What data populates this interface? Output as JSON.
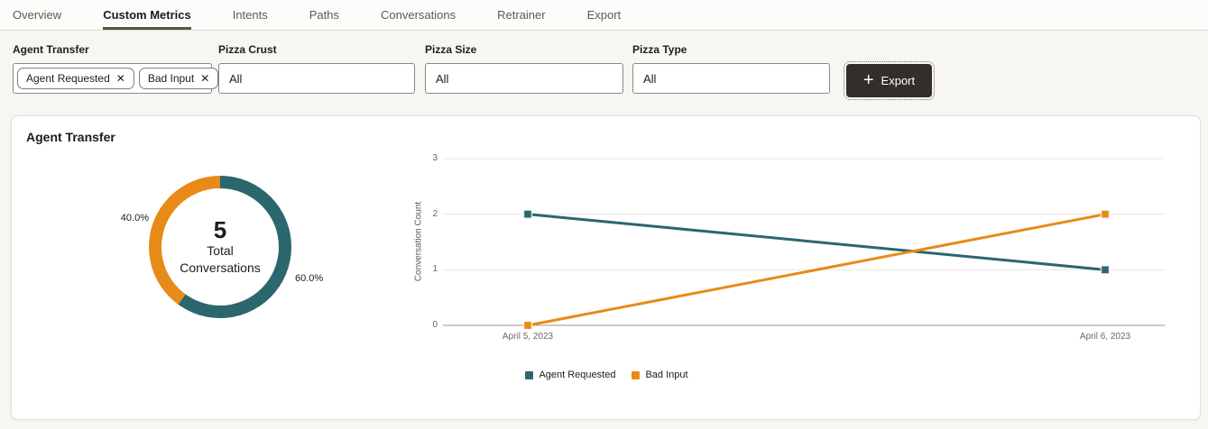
{
  "tabs": {
    "items": [
      {
        "label": "Overview",
        "active": false
      },
      {
        "label": "Custom Metrics",
        "active": true
      },
      {
        "label": "Intents",
        "active": false
      },
      {
        "label": "Paths",
        "active": false
      },
      {
        "label": "Conversations",
        "active": false
      },
      {
        "label": "Retrainer",
        "active": false
      },
      {
        "label": "Export",
        "active": false
      }
    ]
  },
  "filters": {
    "agent_transfer": {
      "label": "Agent Transfer",
      "chips": [
        {
          "label": "Agent Requested"
        },
        {
          "label": "Bad Input"
        }
      ],
      "remove_icon": "✕"
    },
    "pizza_crust": {
      "label": "Pizza Crust",
      "value": "All"
    },
    "pizza_size": {
      "label": "Pizza Size",
      "value": "All"
    },
    "pizza_type": {
      "label": "Pizza Type",
      "value": "All"
    },
    "export_button": {
      "label": "Export",
      "icon": "+"
    }
  },
  "card": {
    "title": "Agent Transfer"
  },
  "colors": {
    "teal": "#2b676d",
    "orange": "#e88a18",
    "grid": "#e9e7e4",
    "axis_line": "#9c968f",
    "tab_underline": "#4d5e42"
  },
  "chart_data": [
    {
      "type": "pie",
      "donut": true,
      "title": "Agent Transfer",
      "slices": [
        {
          "name": "Agent Requested",
          "pct": 60.0,
          "label": "60.0%",
          "color": "#2b676d"
        },
        {
          "name": "Bad Input",
          "pct": 40.0,
          "label": "40.0%",
          "color": "#e88a18"
        }
      ],
      "start": "top",
      "direction": "clockwise",
      "center": {
        "value": "5",
        "label_line1": "Total",
        "label_line2": "Conversations"
      }
    },
    {
      "type": "line",
      "x": [
        "April 5, 2023",
        "April 6, 2023"
      ],
      "series": [
        {
          "name": "Agent Requested",
          "values": [
            2,
            1
          ],
          "color": "#2b676d"
        },
        {
          "name": "Bad Input",
          "values": [
            0,
            2
          ],
          "color": "#e88a18"
        }
      ],
      "ylabel": "Conversation Count",
      "xlabel": "",
      "ylim": [
        0,
        3
      ],
      "yticks": [
        0,
        1,
        2,
        3
      ],
      "grid": true,
      "marker": "square",
      "legend_position": "bottom"
    }
  ],
  "legend": {
    "items": [
      {
        "label": "Agent Requested",
        "color": "#2b676d"
      },
      {
        "label": "Bad Input",
        "color": "#e88a18"
      }
    ]
  }
}
